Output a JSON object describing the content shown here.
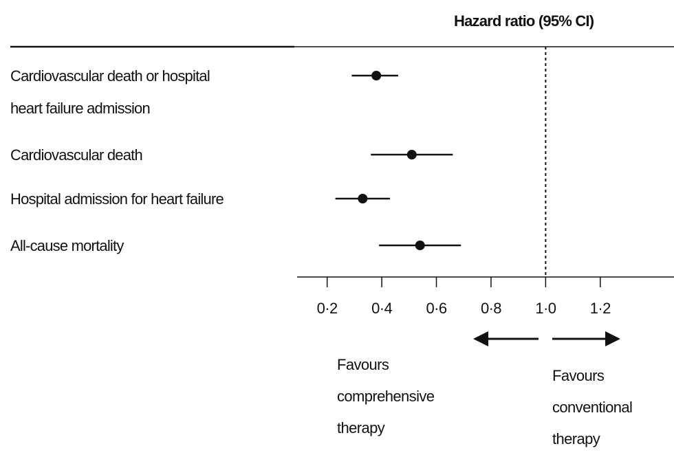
{
  "chart_data": {
    "type": "forest",
    "title": "Hazard ratio (95% CI)",
    "categories": [
      "Cardiovascular death or hospital heart failure admission",
      "Cardiovascular death",
      "Hospital admission for heart failure",
      "All-cause mortality"
    ],
    "estimates": [
      0.38,
      0.51,
      0.33,
      0.54
    ],
    "lower": [
      0.29,
      0.36,
      0.23,
      0.39
    ],
    "upper": [
      0.46,
      0.66,
      0.43,
      0.69
    ],
    "color": "#111111",
    "xlim": [
      0.09,
      1.47
    ],
    "xticks": [
      {
        "value": 0.2,
        "label": "0·2"
      },
      {
        "value": 0.4,
        "label": "0·4"
      },
      {
        "value": 0.6,
        "label": "0·6"
      },
      {
        "value": 0.8,
        "label": "0·8"
      },
      {
        "value": 1.0,
        "label": "1·0"
      },
      {
        "value": 1.2,
        "label": "1·2"
      }
    ],
    "reference_line": 1,
    "annotations": [
      "Favours comprehensive therapy",
      "Favours conventional therapy"
    ]
  }
}
